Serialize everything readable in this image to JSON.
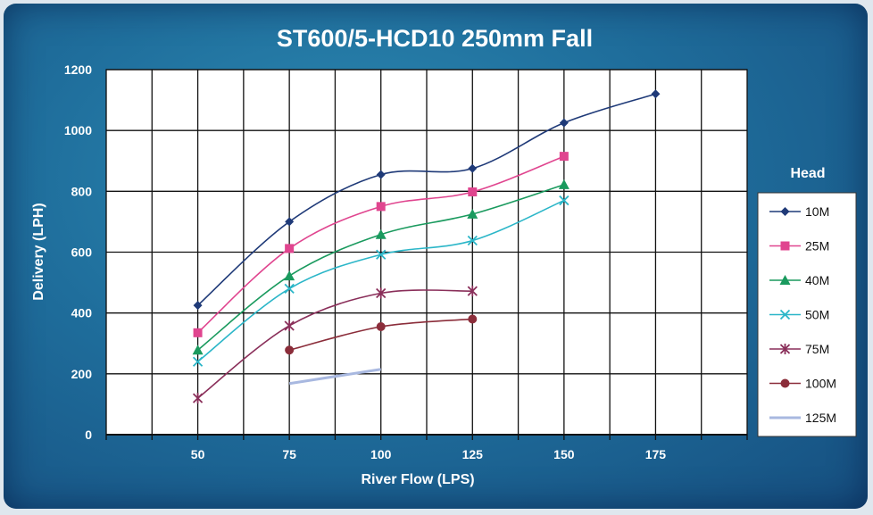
{
  "chart_data": {
    "type": "line",
    "title": "ST600/5-HCD10 250mm Fall",
    "xlabel": "River Flow (LPS)",
    "ylabel": "Delivery (LPH)",
    "xlim": [
      25,
      200
    ],
    "ylim": [
      0,
      1200
    ],
    "xticks": [
      50,
      75,
      100,
      125,
      150,
      175
    ],
    "yticks": [
      0,
      200,
      400,
      600,
      800,
      1000,
      1200
    ],
    "grid": true,
    "legend_title": "Head",
    "legend_position": "right",
    "series": [
      {
        "name": "10M",
        "color": "#1f3a78",
        "marker": "diamond",
        "x": [
          50,
          75,
          100,
          125,
          150,
          175
        ],
        "y": [
          425,
          700,
          855,
          875,
          1025,
          1120
        ]
      },
      {
        "name": "25M",
        "color": "#e0458f",
        "marker": "square",
        "x": [
          50,
          75,
          100,
          125,
          150
        ],
        "y": [
          335,
          612,
          750,
          798,
          915
        ]
      },
      {
        "name": "40M",
        "color": "#1a9a5e",
        "marker": "triangle",
        "x": [
          50,
          75,
          100,
          125,
          150
        ],
        "y": [
          278,
          522,
          658,
          725,
          822
        ]
      },
      {
        "name": "50M",
        "color": "#2bb6c8",
        "marker": "x",
        "x": [
          50,
          75,
          100,
          125,
          150
        ],
        "y": [
          240,
          480,
          592,
          638,
          770
        ]
      },
      {
        "name": "75M",
        "color": "#8a2f5a",
        "marker": "star",
        "x": [
          50,
          75,
          100,
          125
        ],
        "y": [
          120,
          358,
          465,
          472
        ]
      },
      {
        "name": "100M",
        "color": "#8b2d3a",
        "marker": "circle",
        "x": [
          75,
          100,
          125
        ],
        "y": [
          278,
          355,
          380
        ]
      },
      {
        "name": "125M",
        "color": "#a8b8e0",
        "marker": "none",
        "x": [
          75,
          100
        ],
        "y": [
          168,
          215
        ]
      }
    ]
  }
}
